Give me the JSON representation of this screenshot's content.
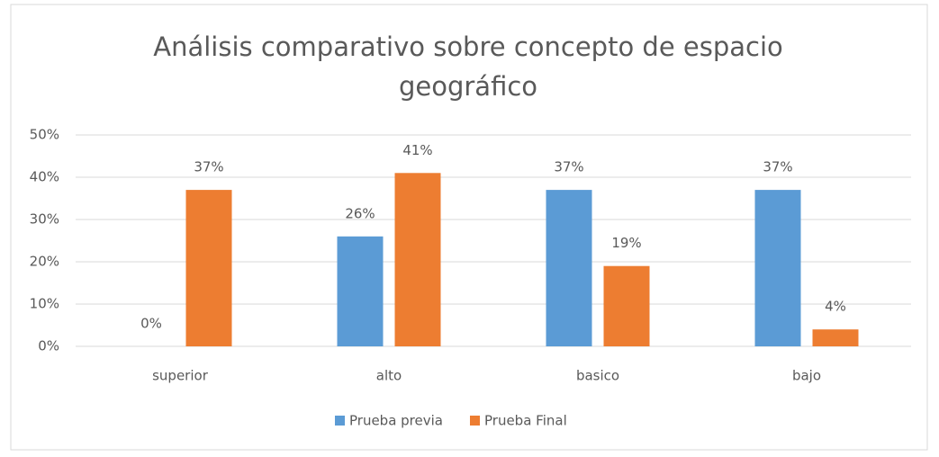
{
  "chart_data": {
    "type": "bar",
    "title": "Análisis comparativo sobre concepto de espacio geográfico",
    "categories": [
      "superior",
      "alto",
      "basico",
      "bajo"
    ],
    "series": [
      {
        "name": "Prueba previa",
        "color": "#5b9bd5",
        "values": [
          0,
          26,
          37,
          37
        ],
        "value_labels": [
          "0%",
          "26%",
          "37%",
          "37%"
        ]
      },
      {
        "name": "Prueba Final",
        "color": "#ed7d31",
        "values": [
          37,
          41,
          19,
          4
        ],
        "value_labels": [
          "37%",
          "41%",
          "19%",
          "4%"
        ]
      }
    ],
    "ylim": [
      0,
      50
    ],
    "yticks": [
      {
        "value": 0,
        "label": "0%"
      },
      {
        "value": 10,
        "label": "10%"
      },
      {
        "value": 20,
        "label": "20%"
      },
      {
        "value": 30,
        "label": "30%"
      },
      {
        "value": 40,
        "label": "40%"
      },
      {
        "value": 50,
        "label": "50%"
      }
    ],
    "grid": true,
    "legend": "bottom"
  }
}
